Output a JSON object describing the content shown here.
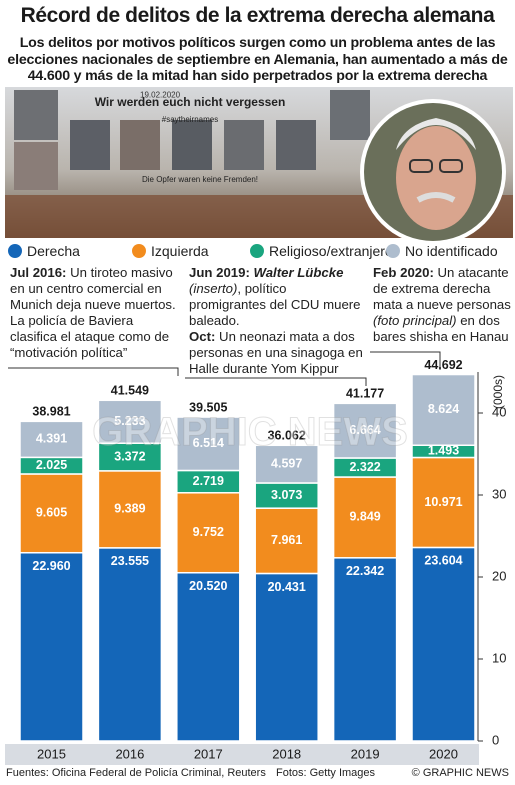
{
  "header": {
    "title": "Récord de delitos de la extrema derecha alemana",
    "subtitle": "Los delitos por motivos políticos surgen como un problema antes de las elecciones nacionales de septiembre en Alemania, han aumentado a más de 44.600 y más de la mitad han sido perpetrados por la extrema derecha"
  },
  "photo": {
    "texts": [
      "19.02.2020",
      "Wir werden euch nicht vergessen",
      "#saytheirnames",
      "Die Opfer waren keine Fremden!"
    ]
  },
  "annotations": [
    {
      "paragraphs": [
        [
          {
            "text": "Jul 2016:",
            "style": "bold"
          },
          {
            "text": " Un tiroteo masivo en un centro comercial en Munich deja nueve muertos. La policía de Baviera clasifica el ataque como de “motivación política”",
            "style": "normal"
          }
        ]
      ]
    },
    {
      "paragraphs": [
        [
          {
            "text": "Jun 2019: ",
            "style": "bold"
          },
          {
            "text": "Walter Lübcke",
            "style": "bold-italic"
          },
          {
            "text": " (inserto)",
            "style": "italic"
          },
          {
            "text": ", político promigrantes del CDU muere baleado.",
            "style": "normal"
          }
        ],
        [
          {
            "text": "Oct:",
            "style": "bold"
          },
          {
            "text": " Un neonazi mata a dos personas en una sinagoga en Halle durante Yom Kippur",
            "style": "normal"
          }
        ]
      ]
    },
    {
      "paragraphs": [
        [
          {
            "text": "Feb 2020:",
            "style": "bold"
          },
          {
            "text": " Un atacante de extrema derecha mata a nueve personas ",
            "style": "normal"
          },
          {
            "text": "(foto principal)",
            "style": "italic"
          },
          {
            "text": " en dos bares shisha en Hanau",
            "style": "normal"
          }
        ]
      ]
    }
  ],
  "chart_data": {
    "type": "bar",
    "stacked": true,
    "categories": [
      "2015",
      "2016",
      "2017",
      "2018",
      "2019",
      "2020"
    ],
    "series": [
      {
        "name": "Derecha",
        "color": "#1466b8",
        "values": [
          22.96,
          23.555,
          20.52,
          20.431,
          22.342,
          23.604
        ],
        "value_labels": [
          "22.960",
          "23.555",
          "20.520",
          "20.431",
          "22.342",
          "23.604"
        ]
      },
      {
        "name": "Izquierda",
        "color": "#f28c1e",
        "values": [
          9.605,
          9.389,
          9.752,
          7.961,
          9.849,
          10.971
        ],
        "value_labels": [
          "9.605",
          "9.389",
          "9.752",
          "7.961",
          "9.849",
          "10.971"
        ]
      },
      {
        "name": "Religioso/extranjero",
        "color": "#1aa57f",
        "values": [
          2.025,
          3.372,
          2.719,
          3.073,
          2.322,
          1.493
        ],
        "value_labels": [
          "2.025",
          "3.372",
          "2.719",
          "3.073",
          "2.322",
          "1.493"
        ]
      },
      {
        "name": "No identificado",
        "color": "#aebdce",
        "values": [
          4.391,
          5.233,
          6.514,
          4.597,
          6.664,
          8.624
        ],
        "value_labels": [
          "4.391",
          "5.233",
          "6.514",
          "4.597",
          "6.664",
          "8.624"
        ]
      }
    ],
    "totals": {
      "values": [
        38.981,
        41.549,
        39.505,
        36.062,
        41.177,
        44.692
      ],
      "value_labels": [
        "38.981",
        "41.549",
        "39.505",
        "36.062",
        "41.177",
        "44.692"
      ]
    },
    "ylim": [
      0,
      45
    ],
    "yticks": [
      0,
      10,
      20,
      30,
      40
    ],
    "y_axis_label": "(000s)",
    "legend": "top"
  },
  "watermark": "GRAPHIC NEWS",
  "footer": {
    "source": "Fuentes: Oficina Federal de Policía Criminal, Reuters",
    "photos": "Fotos: Getty Images",
    "credit": "© GRAPHIC NEWS"
  }
}
